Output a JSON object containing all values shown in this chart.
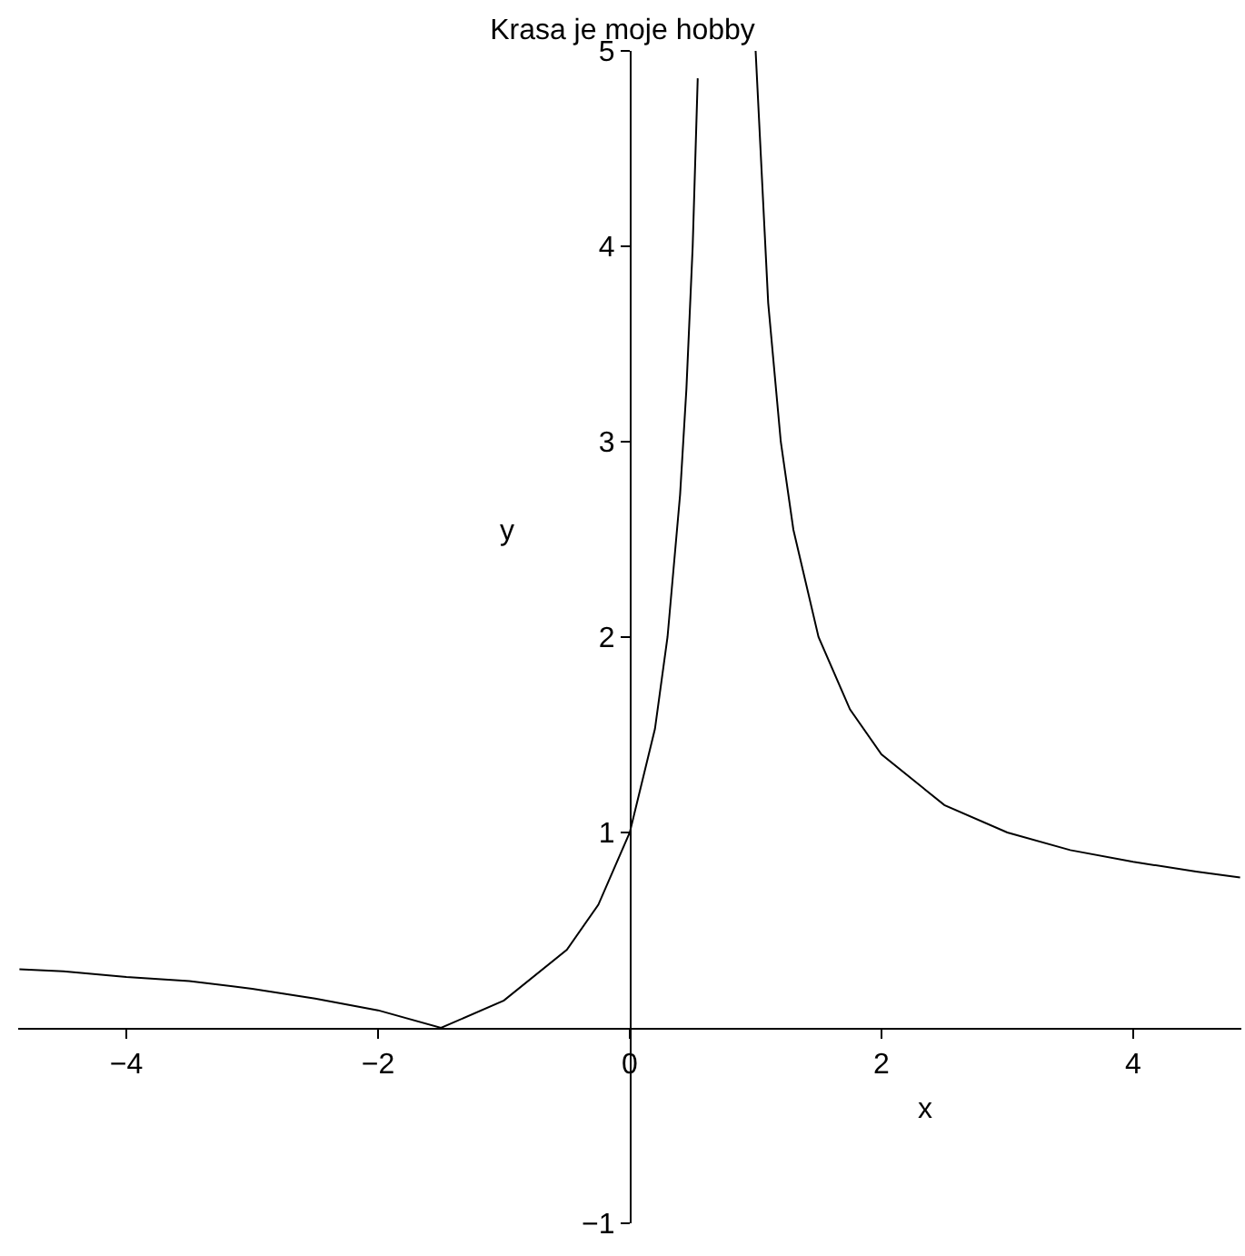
{
  "chart_data": {
    "type": "line",
    "title": "Krasa je moje hobby",
    "xlabel": "x",
    "ylabel": "y",
    "x": [
      -4.85,
      -4.5,
      -4,
      -3.5,
      -3,
      -2.5,
      -2,
      -1.5,
      -1,
      -0.5,
      -0.25,
      0,
      0.2,
      0.3,
      0.4,
      0.45,
      0.5,
      0.54,
      0.75,
      1.0,
      1.1,
      1.2,
      1.3,
      1.5,
      1.75,
      2,
      2.5,
      3,
      3.5,
      4,
      4.5,
      4.85
    ],
    "series": [
      {
        "color": "#000000",
        "values": [
          0.3,
          0.29,
          0.26,
          0.24,
          0.2,
          0.15,
          0.09,
          0,
          0.14,
          0.4,
          0.63,
          1,
          1.53,
          2.0,
          2.73,
          3.27,
          4,
          4.86,
          null,
          5,
          3.71,
          3.0,
          2.55,
          2,
          1.63,
          1.4,
          1.14,
          1,
          0.91,
          0.85,
          0.8,
          0.77
        ]
      }
    ],
    "xlim": [
      -4.86,
      4.86
    ],
    "ylim": [
      -1,
      5
    ],
    "xticks": [
      {
        "value": -4,
        "label": "−4"
      },
      {
        "value": -2,
        "label": "−2"
      },
      0,
      2,
      4
    ],
    "yticks": [
      {
        "value": -1,
        "label": "−1"
      },
      1,
      2,
      3,
      4,
      5
    ],
    "legend": false,
    "marker": "none",
    "line_style": "solid"
  }
}
